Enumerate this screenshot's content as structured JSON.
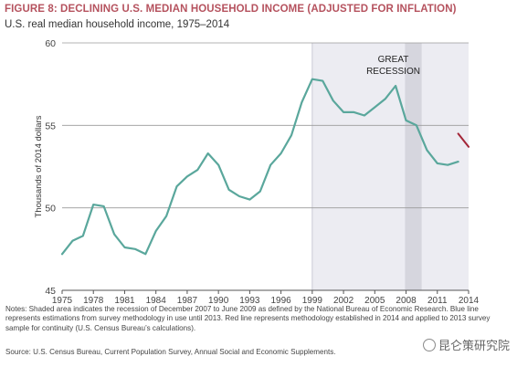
{
  "chart_data": {
    "type": "line",
    "title": "FIGURE 8: DECLINING U.S. MEDIAN HOUSEHOLD INCOME (ADJUSTED FOR INFLATION)",
    "subtitle": "U.S. real median household income, 1975–2014",
    "ylabel": "Thousands of 2014 dollars",
    "xlabel": "",
    "xlim": [
      1975,
      2014
    ],
    "ylim": [
      45,
      60
    ],
    "x_ticks": [
      1975,
      1978,
      1981,
      1984,
      1987,
      1990,
      1993,
      1996,
      1999,
      2002,
      2005,
      2008,
      2011,
      2014
    ],
    "y_ticks": [
      45,
      50,
      55,
      60
    ],
    "grid": "horizontal",
    "legend": "none",
    "shaded_regions": [
      {
        "x": [
          1999,
          2014
        ],
        "color": "#ececf2"
      },
      {
        "x": [
          2007.9,
          2009.5
        ],
        "color": "#d6d6de",
        "label": "GREAT RECESSION"
      }
    ],
    "series": [
      {
        "color": "#5aa79c",
        "x": [
          1975,
          1976,
          1977,
          1978,
          1979,
          1980,
          1981,
          1982,
          1983,
          1984,
          1985,
          1986,
          1987,
          1988,
          1989,
          1990,
          1991,
          1992,
          1993,
          1994,
          1995,
          1996,
          1997,
          1998,
          1999,
          2000,
          2001,
          2002,
          2003,
          2004,
          2005,
          2006,
          2007,
          2008,
          2009,
          2010,
          2011,
          2012,
          2013
        ],
        "values": [
          47.2,
          48.0,
          48.3,
          50.2,
          50.1,
          48.4,
          47.6,
          47.5,
          47.2,
          48.6,
          49.5,
          51.3,
          51.9,
          52.3,
          53.3,
          52.6,
          51.1,
          50.7,
          50.5,
          51.0,
          52.6,
          53.3,
          54.4,
          56.4,
          57.8,
          57.7,
          56.5,
          55.8,
          55.8,
          55.6,
          56.1,
          56.6,
          57.4,
          55.3,
          55.0,
          53.5,
          52.7,
          52.6,
          52.8
        ]
      },
      {
        "color": "#a32638",
        "x": [
          2013,
          2014
        ],
        "values": [
          54.5,
          53.7
        ]
      }
    ]
  },
  "annotation": {
    "recession_line1": "GREAT",
    "recession_line2": "RECESSION"
  },
  "notes_text": "Notes: Shaded area indicates the recession of December 2007 to June 2009 as defined by the National Bureau of Economic Research. Blue line represents estimations from survey methodology in use until 2013. Red line represents methodology established in 2014 and applied to 2013 survey sample for continuity (U.S. Census Bureau’s calculations).",
  "source_text": "Source: U.S. Census Bureau, Current Population Survey, Annual Social and Economic Supplements.",
  "watermark_text": "昆仑策研究院"
}
